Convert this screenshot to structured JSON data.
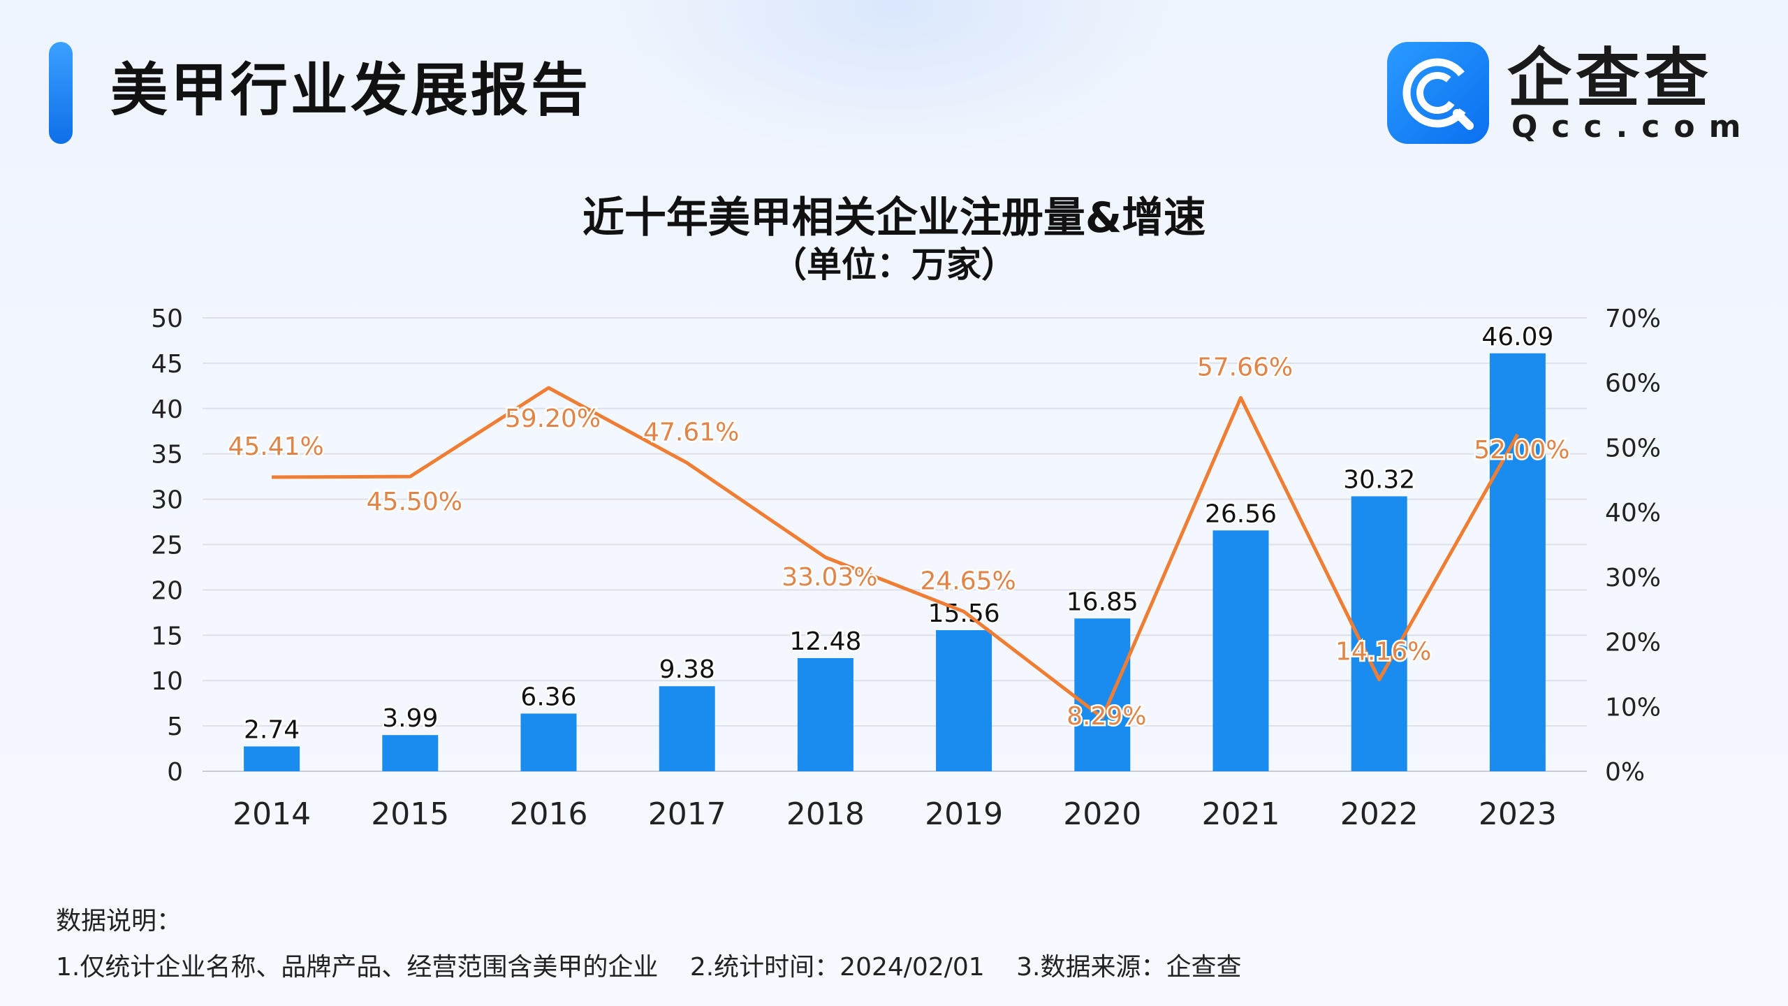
{
  "header": {
    "report_title": "美甲行业发展报告",
    "logo_name": "企查查",
    "logo_domain": "Qcc.com",
    "accent_color": "#1a8cf0",
    "logo_icon": "qcc-logo-icon"
  },
  "chart_data": {
    "type": "bar",
    "title": "近十年美甲相关企业注册量&增速",
    "subtitle": "（单位：万家）",
    "categories": [
      "2014",
      "2015",
      "2016",
      "2017",
      "2018",
      "2019",
      "2020",
      "2021",
      "2022",
      "2023"
    ],
    "series": [
      {
        "type": "bar",
        "axis": "left",
        "color": "#1a8cf0",
        "values": [
          2.74,
          3.99,
          6.36,
          9.38,
          12.48,
          15.56,
          16.85,
          26.56,
          30.32,
          46.09
        ],
        "labels": [
          "2.74",
          "3.99",
          "6.36",
          "9.38",
          "12.48",
          "15.56",
          "16.85",
          "26.56",
          "30.32",
          "46.09"
        ]
      },
      {
        "type": "line",
        "axis": "right",
        "color": "#ef7d33",
        "values": [
          45.41,
          45.5,
          59.2,
          47.61,
          33.03,
          24.65,
          8.29,
          57.66,
          14.16,
          52.0
        ],
        "labels": [
          "45.41%",
          "45.50%",
          "59.20%",
          "47.61%",
          "33.03%",
          "24.65%",
          "8.29%",
          "57.66%",
          "14.16%",
          "52.00%"
        ]
      }
    ],
    "y_left": {
      "min": 0,
      "max": 50,
      "ticks": [
        "0",
        "5",
        "10",
        "15",
        "20",
        "25",
        "30",
        "35",
        "40",
        "45",
        "50"
      ]
    },
    "y_right": {
      "min": 0,
      "max": 70,
      "ticks": [
        "0%",
        "10%",
        "20%",
        "30%",
        "40%",
        "50%",
        "60%",
        "70%"
      ]
    },
    "grid": true,
    "legend": "none"
  },
  "notes": {
    "heading": "数据说明：",
    "items": [
      "1.仅统计企业名称、品牌产品、经营范围含美甲的企业",
      "2.统计时间：2024/02/01",
      "3.数据来源：企查查"
    ]
  }
}
